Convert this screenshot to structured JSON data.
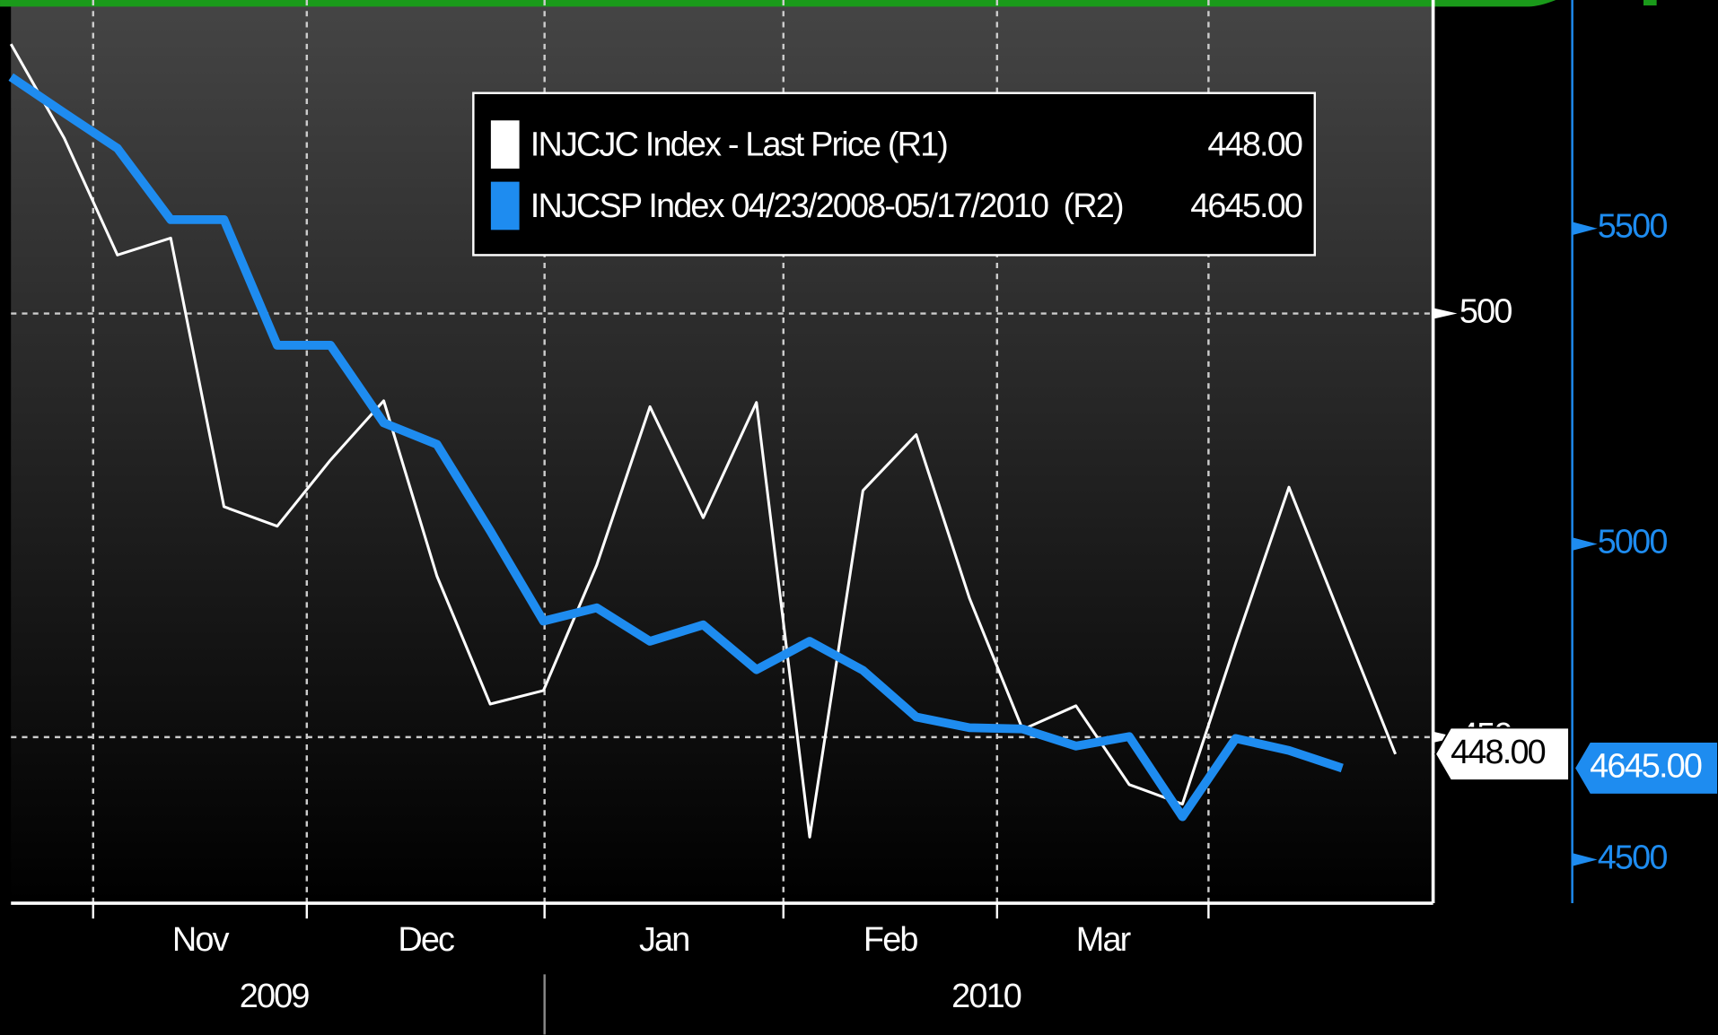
{
  "chart_data": {
    "type": "line",
    "x_axis": {
      "months": [
        "Nov",
        "Dec",
        "Jan",
        "Feb",
        "Mar"
      ],
      "years": [
        "2009",
        "2010"
      ]
    },
    "ylim": [
      430.4,
      537
    ],
    "yticks": [
      450,
      500
    ],
    "y2lim": [
      4431,
      5862
    ],
    "y2ticks": [
      4500,
      5000,
      5500
    ],
    "grid": true,
    "legend": "top",
    "series": [
      {
        "name": "INJCJC Index - Last Price (R1)",
        "color": "#ffffff",
        "axis": "y",
        "values": [
          531.8,
          520.7,
          506.9,
          508.9,
          477.2,
          474.9,
          482.7,
          489.7,
          469.0,
          453.9,
          455.5,
          470.3,
          489.0,
          475.9,
          489.5,
          438.2,
          479.1,
          485.7,
          466.4,
          450.9,
          453.7,
          444.4,
          442.1,
          461.1,
          479.5,
          463.7,
          448
        ],
        "last_value": 448,
        "last_value_label": "448.00"
      },
      {
        "name": "INJCSP Index 04/23/2008-05/17/2010  (R2)",
        "color": "#1e8cf0",
        "axis": "y2",
        "values": [
          5740,
          5683,
          5627,
          5514,
          5514,
          5315,
          5315,
          5192,
          5158,
          5021,
          4878,
          4899,
          4846,
          4872,
          4801,
          4846,
          4800,
          4726,
          4709,
          4707,
          4680,
          4695,
          4568,
          4692,
          4673,
          4645
        ],
        "last_value": 4645,
        "last_value_label": "4645.00"
      }
    ]
  }
}
